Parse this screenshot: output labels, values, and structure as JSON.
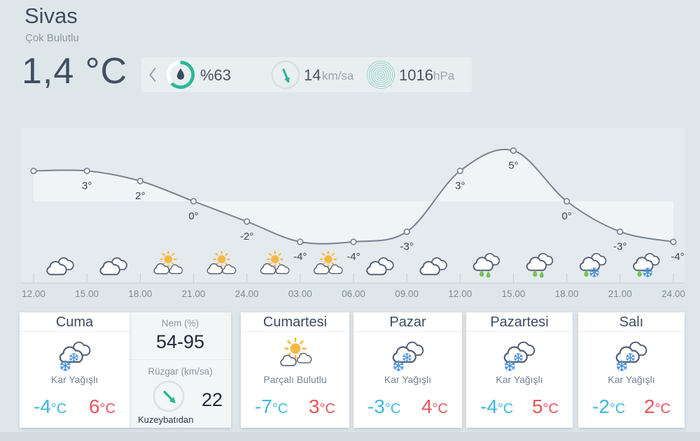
{
  "colors": {
    "bg": "#dfe6ea",
    "accent_teal": "#2ab795",
    "temp_low_cyan": "#3fb8dc",
    "temp_high_red": "#e8545c",
    "curve_line": "#79828f",
    "area_fill": "rgba(255,255,255,0.48)",
    "sun_orange": "#f6b945",
    "rain_green": "#74c255",
    "snow_blue": "#4a90d9",
    "cloud_stroke": "#566074"
  },
  "header": {
    "city": "Sivas",
    "condition": "Çok Bulutlu",
    "temperature": "1,4 °C"
  },
  "infobar": {
    "chevron_left_icon": "‹",
    "humidity": {
      "icon": "humidity-gauge-icon",
      "label": "%63",
      "percent": 63
    },
    "wind": {
      "icon": "wind-direction-icon",
      "value": "14",
      "unit": "km/sa"
    },
    "pressure": {
      "icon": "pressure-rings-icon",
      "value": "1016",
      "unit": "hPa"
    }
  },
  "chart_data": {
    "type": "line",
    "title": "36-hour temperature forecast",
    "x_tick_labels": [
      "12.00",
      "15.00",
      "18.00",
      "21.00",
      "24.00",
      "03.00",
      "06.00",
      "09.00",
      "12.00",
      "15.00",
      "18.00",
      "21.00",
      "24.00"
    ],
    "temps_c": [
      3,
      3,
      2,
      0,
      -2,
      -4,
      -4,
      -3,
      3,
      5,
      0,
      -3,
      -4
    ],
    "point_labels": [
      "",
      "3°",
      "2°",
      "0°",
      "-2°",
      "-4°",
      "-4°",
      "-3°",
      "3°",
      "5°",
      "0°",
      "-3°",
      "-4°"
    ],
    "segment_icons": [
      "cloudy",
      "cloudy",
      "partly-sunny",
      "partly-sunny",
      "partly-sunny",
      "partly-sunny",
      "cloudy",
      "cloudy",
      "rainy",
      "rainy",
      "sleet",
      "sleet"
    ],
    "ylim": [
      -6,
      7
    ],
    "fill_to_zero": true,
    "grid": false,
    "legend": "none"
  },
  "forecast": {
    "unit": "°C",
    "days": [
      {
        "day": "Cuma",
        "icon": "snowy",
        "condition": "Kar Yağışlı",
        "low": "-4",
        "high": "6"
      },
      {
        "day": "Cumartesi",
        "icon": "partly-cloudy",
        "condition": "Parçalı Bulutlu",
        "low": "-7",
        "high": "3"
      },
      {
        "day": "Pazar",
        "icon": "snowy",
        "condition": "Kar Yağışlı",
        "low": "-3",
        "high": "4"
      },
      {
        "day": "Pazartesi",
        "icon": "snowy",
        "condition": "Kar Yağışlı",
        "low": "-4",
        "high": "5"
      },
      {
        "day": "Salı",
        "icon": "snowy",
        "condition": "Kar Yağışlı",
        "low": "-2",
        "high": "2"
      }
    ],
    "details": {
      "humidity_label": "Nem (%)",
      "humidity_range": "54-95",
      "wind_label": "Rüzgar (km/sa)",
      "wind_speed": "22",
      "wind_direction": "Kuzeybatıdan"
    }
  }
}
